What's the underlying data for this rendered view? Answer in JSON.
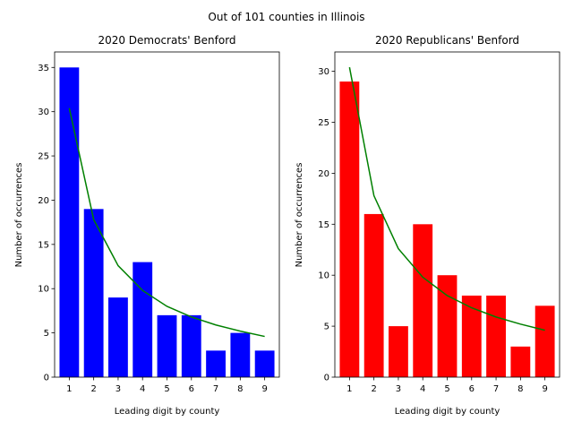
{
  "suptitle": "Out of 101 counties in Illinois",
  "chart_data": [
    {
      "type": "bar",
      "title": "2020 Democrats' Benford",
      "xlabel": "Leading digit by county",
      "ylabel": "Number of occurrences",
      "categories": [
        "1",
        "2",
        "3",
        "4",
        "5",
        "6",
        "7",
        "8",
        "9"
      ],
      "series": [
        {
          "type": "bar",
          "values": [
            35,
            19,
            9,
            13,
            7,
            7,
            3,
            5,
            3
          ],
          "color": "#0000ff"
        },
        {
          "type": "line",
          "values": [
            30.4,
            17.8,
            12.6,
            9.8,
            8.0,
            6.8,
            5.9,
            5.2,
            4.6
          ],
          "color": "#008000"
        }
      ],
      "ylim": [
        0,
        36.75
      ],
      "yticks": [
        0,
        5,
        10,
        15,
        20,
        25,
        30,
        35
      ],
      "grid": false
    },
    {
      "type": "bar",
      "title": "2020 Republicans' Benford",
      "xlabel": "Leading digit by county",
      "ylabel": "Number of occurrences",
      "categories": [
        "1",
        "2",
        "3",
        "4",
        "5",
        "6",
        "7",
        "8",
        "9"
      ],
      "series": [
        {
          "type": "bar",
          "values": [
            29,
            16,
            5,
            15,
            10,
            8,
            8,
            3,
            7
          ],
          "color": "#ff0000"
        },
        {
          "type": "line",
          "values": [
            30.4,
            17.8,
            12.6,
            9.8,
            8.0,
            6.8,
            5.9,
            5.2,
            4.6
          ],
          "color": "#008000"
        }
      ],
      "ylim": [
        0,
        31.9
      ],
      "yticks": [
        0,
        5,
        10,
        15,
        20,
        25,
        30
      ],
      "grid": false
    }
  ]
}
